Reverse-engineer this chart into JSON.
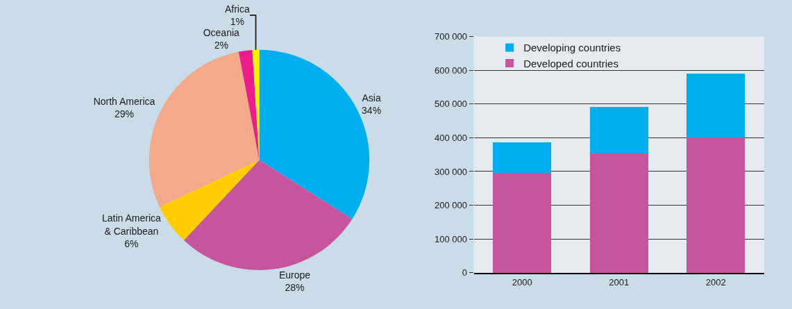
{
  "chart_data": [
    {
      "type": "pie",
      "categories": [
        "Asia",
        "Europe",
        "Latin America & Caribbean",
        "North America",
        "Oceania",
        "Africa"
      ],
      "values": [
        34,
        28,
        6,
        29,
        2,
        1
      ],
      "colors": [
        "#00aeef",
        "#c6559e",
        "#ffcc00",
        "#f4a98a",
        "#ec1c8c",
        "#fff200"
      ],
      "value_labels": [
        "34%",
        "28%",
        "6%",
        "29%",
        "2%",
        "1%"
      ],
      "legend": false
    },
    {
      "type": "bar",
      "stacked": true,
      "categories": [
        "2000",
        "2001",
        "2002"
      ],
      "series": [
        {
          "name": "Developed countries",
          "color": "#c6559e",
          "values": [
            295000,
            354000,
            400000
          ]
        },
        {
          "name": "Developing countries",
          "color": "#00aeef",
          "values": [
            92000,
            138000,
            190000
          ]
        }
      ],
      "ylim": [
        0,
        700000
      ],
      "yticks": [
        0,
        {
          "value": 100000,
          "label": "100 000"
        },
        {
          "value": 200000,
          "label": "200 000"
        },
        {
          "value": 300000,
          "label": "300 000"
        },
        {
          "value": 400000,
          "label": "400 000"
        },
        {
          "value": 500000,
          "label": "500 000"
        },
        {
          "value": 600000,
          "label": "600 000"
        },
        {
          "value": 700000,
          "label": "700 000"
        }
      ],
      "grid": "y",
      "legend": "top left"
    }
  ]
}
